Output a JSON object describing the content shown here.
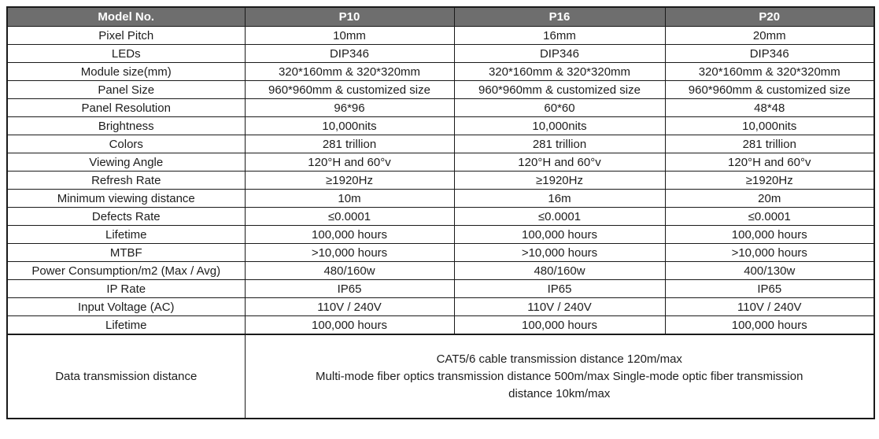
{
  "table": {
    "header": {
      "model_col_label": "Model No.",
      "models": [
        "P10",
        "P16",
        "P20"
      ]
    },
    "rows": [
      {
        "label": "Pixel Pitch",
        "values": [
          "10mm",
          "16mm",
          "20mm"
        ]
      },
      {
        "label": "LEDs",
        "values": [
          "DIP346",
          "DIP346",
          "DIP346"
        ]
      },
      {
        "label": "Module size(mm)",
        "values": [
          "320*160mm & 320*320mm",
          "320*160mm & 320*320mm",
          "320*160mm & 320*320mm"
        ]
      },
      {
        "label": "Panel Size",
        "values": [
          "960*960mm & customized size",
          "960*960mm & customized size",
          "960*960mm & customized size"
        ]
      },
      {
        "label": "Panel Resolution",
        "values": [
          "96*96",
          "60*60",
          "48*48"
        ]
      },
      {
        "label": "Brightness",
        "values": [
          "10,000nits",
          "10,000nits",
          "10,000nits"
        ]
      },
      {
        "label": "Colors",
        "values": [
          "281 trillion",
          "281 trillion",
          "281 trillion"
        ]
      },
      {
        "label": "Viewing Angle",
        "values": [
          "120°H and 60°v",
          "120°H and 60°v",
          "120°H and 60°v"
        ]
      },
      {
        "label": "Refresh Rate",
        "values": [
          "≥1920Hz",
          "≥1920Hz",
          "≥1920Hz"
        ]
      },
      {
        "label": "Minimum viewing distance",
        "values": [
          "10m",
          "16m",
          "20m"
        ]
      },
      {
        "label": "Defects Rate",
        "values": [
          "≤0.0001",
          "≤0.0001",
          "≤0.0001"
        ]
      },
      {
        "label": "Lifetime",
        "values": [
          "100,000 hours",
          "100,000 hours",
          "100,000 hours"
        ]
      },
      {
        "label": "MTBF",
        "values": [
          ">10,000 hours",
          ">10,000 hours",
          ">10,000 hours"
        ]
      },
      {
        "label": "Power Consumption/m2 (Max / Avg)",
        "values": [
          "480/160w",
          "480/160w",
          "400/130w"
        ]
      },
      {
        "label": "IP Rate",
        "values": [
          "IP65",
          "IP65",
          "IP65"
        ]
      },
      {
        "label": "Input Voltage (AC)",
        "values": [
          "110V / 240V",
          "110V / 240V",
          "110V / 240V"
        ]
      },
      {
        "label": "Lifetime",
        "values": [
          "100,000 hours",
          "100,000 hours",
          "100,000 hours"
        ]
      }
    ],
    "merged_row": {
      "label": "Data transmission distance",
      "lines": [
        "CAT5/6 cable transmission distance 120m/max",
        "Multi-mode fiber optics transmission distance 500m/max Single-mode optic fiber transmission",
        "distance 10km/max"
      ]
    },
    "colors": {
      "header_bg": "#6e6e6e",
      "header_text": "#ffffff",
      "border": "#1a1a1a",
      "body_text": "#1d1d1d"
    }
  }
}
